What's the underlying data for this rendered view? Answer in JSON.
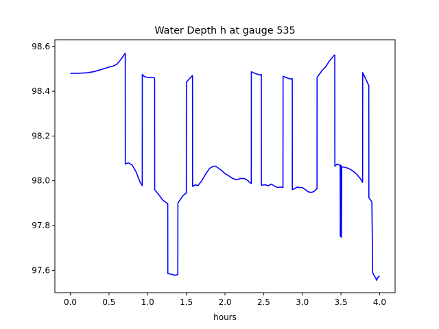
{
  "chart_data": {
    "type": "line",
    "title": "Water Depth h at gauge 535",
    "xlabel": "hours",
    "ylabel": "",
    "xlim": [
      -0.2,
      4.2
    ],
    "ylim": [
      97.5,
      98.63
    ],
    "grid": false,
    "x_ticks": [
      0.0,
      0.5,
      1.0,
      1.5,
      2.0,
      2.5,
      3.0,
      3.5,
      4.0
    ],
    "x_tick_labels": [
      "0.0",
      "0.5",
      "1.0",
      "1.5",
      "2.0",
      "2.5",
      "3.0",
      "3.5",
      "4.0"
    ],
    "y_ticks": [
      97.6,
      97.8,
      98.0,
      98.2,
      98.4,
      98.6
    ],
    "y_tick_labels": [
      "97.6",
      "97.8",
      "98.0",
      "98.2",
      "98.4",
      "98.6"
    ],
    "series": [
      {
        "color": "#0000ff",
        "x": [
          0.0,
          0.1,
          0.2,
          0.3,
          0.4,
          0.5,
          0.55,
          0.6,
          0.65,
          0.71,
          0.711,
          0.75,
          0.8,
          0.85,
          0.9,
          0.93,
          0.931,
          0.96,
          1.0,
          1.09,
          1.091,
          1.15,
          1.2,
          1.25,
          1.26,
          1.261,
          1.3,
          1.35,
          1.38,
          1.39,
          1.391,
          1.42,
          1.46,
          1.5,
          1.501,
          1.55,
          1.58,
          1.581,
          1.62,
          1.65,
          1.7,
          1.75,
          1.8,
          1.85,
          1.88,
          1.92,
          1.96,
          2.0,
          2.05,
          2.1,
          2.15,
          2.2,
          2.25,
          2.28,
          2.3,
          2.31,
          2.33,
          2.34,
          2.341,
          2.4,
          2.46,
          2.47,
          2.471,
          2.52,
          2.56,
          2.6,
          2.64,
          2.68,
          2.72,
          2.75,
          2.751,
          2.8,
          2.84,
          2.87,
          2.871,
          2.9,
          2.94,
          2.96,
          3.0,
          3.04,
          3.08,
          3.12,
          3.15,
          3.18,
          3.19,
          3.191,
          3.25,
          3.3,
          3.35,
          3.41,
          3.42,
          3.421,
          3.45,
          3.48,
          3.49,
          3.491,
          3.495,
          3.496,
          3.505,
          3.506,
          3.51,
          3.55,
          3.6,
          3.65,
          3.7,
          3.75,
          3.77,
          3.78,
          3.781,
          3.82,
          3.86,
          3.861,
          3.9,
          3.91,
          3.93,
          3.95,
          3.96,
          3.98,
          4.0
        ],
        "values": [
          98.48,
          98.48,
          98.482,
          98.487,
          98.497,
          98.508,
          98.512,
          98.52,
          98.54,
          98.57,
          98.075,
          98.08,
          98.07,
          98.04,
          97.995,
          97.978,
          98.475,
          98.465,
          98.462,
          98.46,
          97.96,
          97.935,
          97.912,
          97.9,
          97.898,
          97.585,
          97.583,
          97.578,
          97.58,
          97.582,
          97.9,
          97.915,
          97.935,
          97.945,
          98.44,
          98.46,
          98.47,
          97.975,
          97.982,
          97.978,
          98.0,
          98.03,
          98.055,
          98.065,
          98.065,
          98.055,
          98.045,
          98.032,
          98.022,
          98.01,
          98.005,
          98.01,
          98.01,
          98.005,
          98.0,
          97.995,
          97.99,
          97.988,
          98.487,
          98.478,
          98.472,
          98.475,
          97.98,
          97.982,
          97.978,
          97.985,
          97.976,
          97.97,
          97.972,
          97.97,
          98.467,
          98.46,
          98.455,
          98.456,
          97.96,
          97.965,
          97.972,
          97.97,
          97.97,
          97.96,
          97.95,
          97.948,
          97.952,
          97.962,
          97.965,
          98.462,
          98.49,
          98.508,
          98.535,
          98.56,
          98.562,
          98.065,
          98.075,
          98.07,
          98.065,
          97.755,
          97.75,
          98.07,
          98.065,
          97.748,
          98.062,
          98.06,
          98.055,
          98.045,
          98.03,
          98.01,
          97.998,
          97.993,
          98.483,
          98.455,
          98.425,
          97.925,
          97.905,
          97.59,
          97.575,
          97.566,
          97.555,
          97.57,
          97.575
        ]
      }
    ]
  }
}
